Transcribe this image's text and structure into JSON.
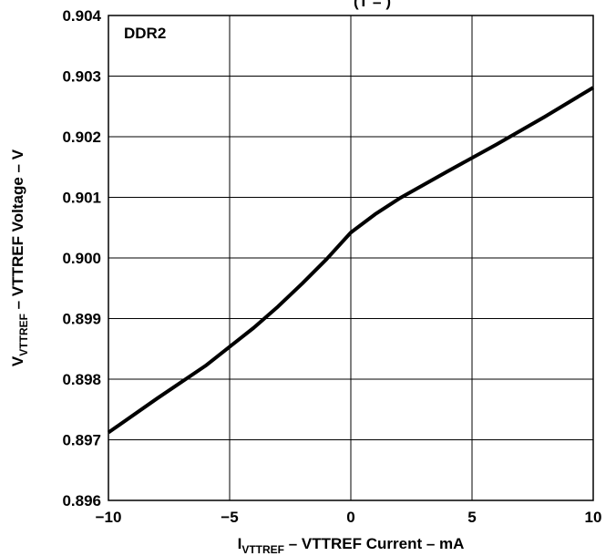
{
  "chart_data": {
    "type": "line",
    "title_fragment": "(T = )",
    "annotation": "DDR2",
    "xlabel": {
      "symbol": "I",
      "subscript": "VTTREF",
      "rest": " – VTTREF Current – mA"
    },
    "ylabel": {
      "symbol": "V",
      "subscript": "VTTREF",
      "rest": " – VTTREF Voltage – V"
    },
    "xlim": [
      -10,
      10
    ],
    "ylim": [
      0.896,
      0.904
    ],
    "xticks": [
      -10,
      -5,
      0,
      5,
      10
    ],
    "xtick_labels": [
      "−10",
      "−5",
      "0",
      "5",
      "10"
    ],
    "yticks": [
      0.896,
      0.897,
      0.898,
      0.899,
      0.9,
      0.901,
      0.902,
      0.903,
      0.904
    ],
    "ytick_labels": [
      "0.896",
      "0.897",
      "0.898",
      "0.899",
      "0.900",
      "0.901",
      "0.902",
      "0.903",
      "0.904"
    ],
    "grid": true,
    "series": [
      {
        "color": "#000000",
        "x": [
          -10,
          -8,
          -6,
          -4,
          -3,
          -2,
          -1,
          0,
          1,
          2,
          4,
          6,
          8,
          10
        ],
        "y": [
          0.89712,
          0.89768,
          0.89822,
          0.89885,
          0.8992,
          0.89958,
          0.89998,
          0.90042,
          0.90072,
          0.90098,
          0.90143,
          0.90187,
          0.90233,
          0.90281
        ]
      }
    ]
  }
}
